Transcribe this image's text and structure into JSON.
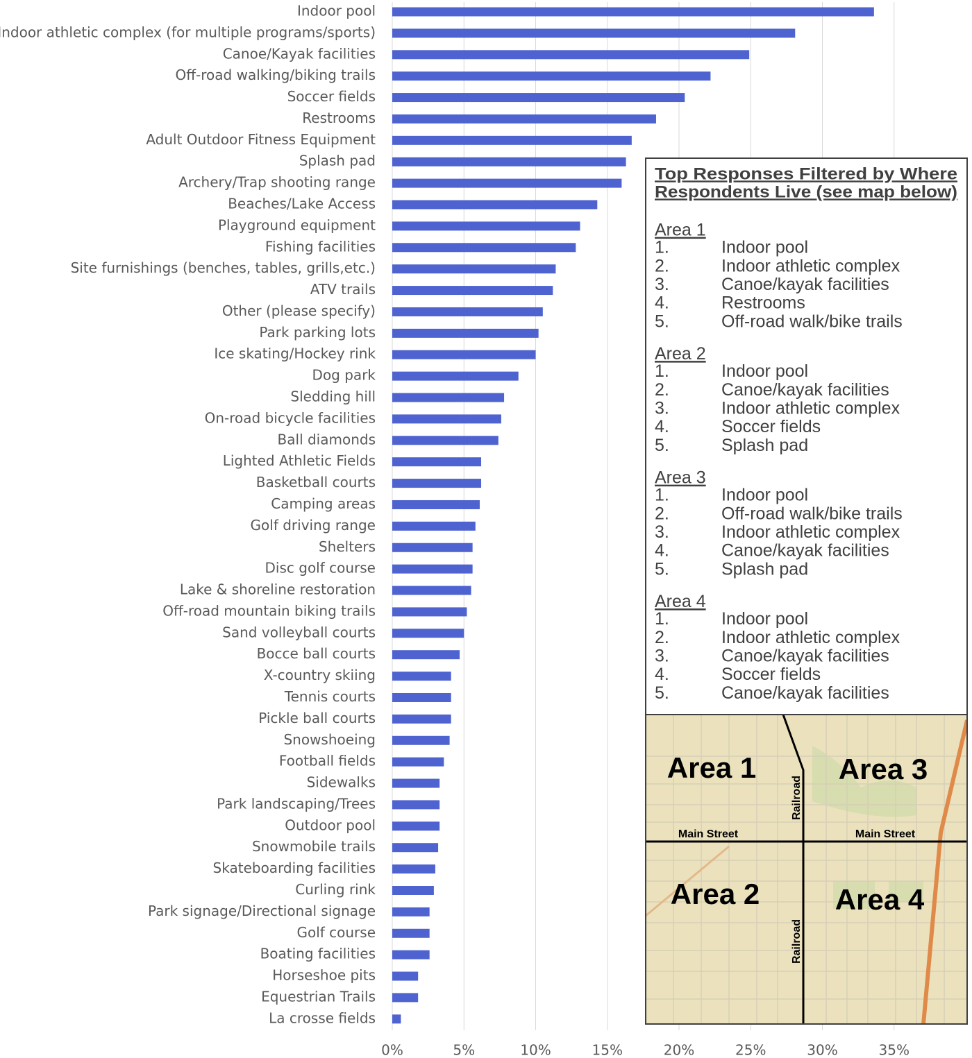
{
  "chart_data": {
    "type": "bar",
    "orientation": "horizontal",
    "color": "#4e63cf",
    "grid": true,
    "categories": [
      "Indoor pool",
      "Indoor athletic complex (for multiple programs/sports)",
      "Canoe/Kayak facilities",
      "Off-road walking/biking trails",
      "Soccer fields",
      "Restrooms",
      "Adult Outdoor Fitness Equipment",
      "Splash pad",
      "Archery/Trap shooting range",
      "Beaches/Lake Access",
      "Playground equipment",
      "Fishing facilities",
      "Site furnishings (benches, tables, grills,etc.)",
      "ATV trails",
      "Other (please specify)",
      "Park parking lots",
      "Ice skating/Hockey rink",
      "Dog park",
      "Sledding hill",
      "On-road bicycle facilities",
      "Ball diamonds",
      "Lighted Athletic Fields",
      "Basketball courts",
      "Camping areas",
      "Golf driving range",
      "Shelters",
      "Disc golf course",
      "Lake & shoreline restoration",
      "Off-road mountain biking trails",
      "Sand volleyball courts",
      "Bocce ball courts",
      "X-country skiing",
      "Tennis courts",
      "Pickle ball courts",
      "Snowshoeing",
      "Football fields",
      "Sidewalks",
      "Park landscaping/Trees",
      "Outdoor pool",
      "Snowmobile trails",
      "Skateboarding facilities",
      "Curling rink",
      "Park signage/Directional signage",
      "Golf course",
      "Boating facilities",
      "Horseshoe pits",
      "Equestrian Trails",
      "La crosse fields"
    ],
    "values": [
      33.6,
      28.1,
      24.9,
      22.2,
      20.4,
      18.4,
      16.7,
      16.3,
      16.0,
      14.3,
      13.1,
      12.8,
      11.4,
      11.2,
      10.5,
      10.2,
      10.0,
      8.8,
      7.8,
      7.6,
      7.4,
      6.2,
      6.2,
      6.1,
      5.8,
      5.6,
      5.6,
      5.5,
      5.2,
      5.0,
      4.7,
      4.1,
      4.1,
      4.1,
      4.0,
      3.6,
      3.3,
      3.3,
      3.3,
      3.2,
      3.0,
      2.9,
      2.6,
      2.6,
      2.6,
      1.8,
      1.8,
      0.6
    ],
    "xlim": [
      0,
      40
    ],
    "xticks": [
      {
        "value": 0,
        "label": "0%"
      },
      {
        "value": 5,
        "label": "5%"
      },
      {
        "value": 10,
        "label": "10%"
      },
      {
        "value": 15,
        "label": "15%"
      },
      {
        "value": 20,
        "label": "20%"
      },
      {
        "value": 25,
        "label": "25%"
      },
      {
        "value": 30,
        "label": "30%"
      },
      {
        "value": 35,
        "label": "35%"
      }
    ],
    "panel": {
      "title": [
        "Top Responses Filtered by Where",
        "Respondents Live (see map below)"
      ],
      "areas": [
        {
          "name": "Area 1",
          "items": [
            {
              "rank": "1.",
              "text": "Indoor pool"
            },
            {
              "rank": "2.",
              "text": "Indoor athletic complex"
            },
            {
              "rank": "3.",
              "text": "Canoe/kayak facilities"
            },
            {
              "rank": "4.",
              "text": "Restrooms"
            },
            {
              "rank": "5.",
              "text": "Off-road walk/bike trails"
            }
          ]
        },
        {
          "name": "Area 2",
          "items": [
            {
              "rank": "1.",
              "text": "Indoor pool"
            },
            {
              "rank": "2.",
              "text": "Canoe/kayak facilities"
            },
            {
              "rank": "3.",
              "text": "Indoor athletic complex"
            },
            {
              "rank": "4.",
              "text": "Soccer fields"
            },
            {
              "rank": "5.",
              "text": "Splash pad"
            }
          ]
        },
        {
          "name": "Area 3",
          "items": [
            {
              "rank": "1.",
              "text": "Indoor pool"
            },
            {
              "rank": "2.",
              "text": "Off-road walk/bike trails"
            },
            {
              "rank": "3.",
              "text": "Indoor athletic complex"
            },
            {
              "rank": "4.",
              "text": "Canoe/kayak facilities"
            },
            {
              "rank": "5.",
              "text": "Splash pad"
            }
          ]
        },
        {
          "name": "Area 4",
          "items": [
            {
              "rank": "1.",
              "text": "Indoor pool"
            },
            {
              "rank": "2.",
              "text": "Indoor athletic complex"
            },
            {
              "rank": "3.",
              "text": "Canoe/kayak facilities"
            },
            {
              "rank": "4.",
              "text": "Soccer fields"
            },
            {
              "rank": "5.",
              "text": "Canoe/kayak facilities"
            }
          ]
        }
      ]
    },
    "map": {
      "areas": [
        "Area 1",
        "Area 2",
        "Area 3",
        "Area 4"
      ],
      "streets": [
        "Main Street",
        "Main Street"
      ],
      "railroads": [
        "Railroad",
        "Railroad"
      ]
    }
  }
}
